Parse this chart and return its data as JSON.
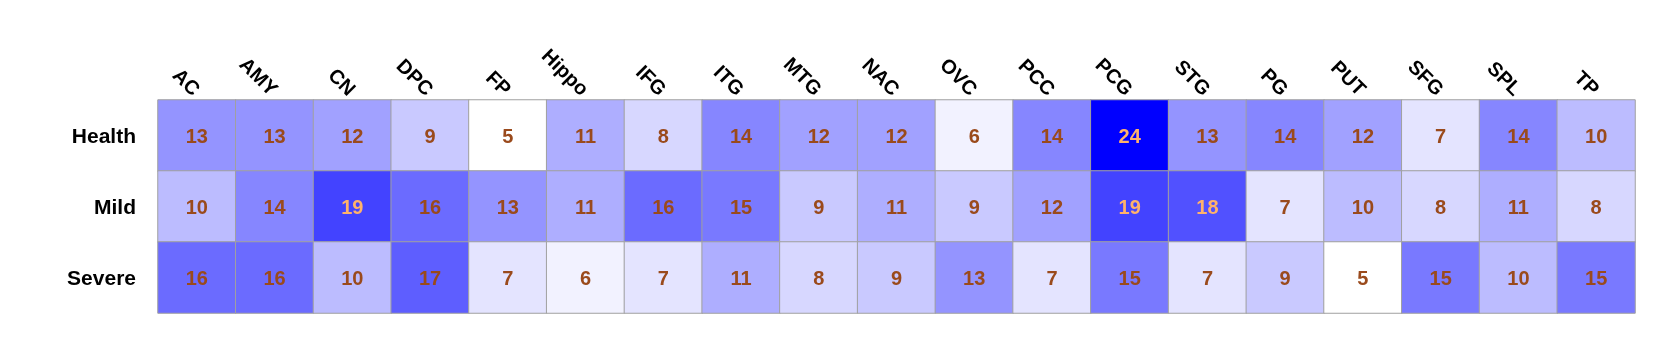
{
  "chart_data": {
    "type": "heatmap",
    "categories": [
      "AC",
      "AMY",
      "CN",
      "DPC",
      "FP",
      "Hippo",
      "IFG",
      "ITG",
      "MTG",
      "NAC",
      "OVC",
      "PCC",
      "PCG",
      "STG",
      "PG",
      "PUT",
      "SFG",
      "SPL",
      "TP"
    ],
    "y_categories": [
      "Health",
      "Mild",
      "Severe"
    ],
    "cells": [
      [
        13,
        13,
        12,
        9,
        5,
        11,
        8,
        14,
        12,
        12,
        6,
        14,
        24,
        13,
        14,
        12,
        7,
        14,
        10
      ],
      [
        10,
        14,
        19,
        16,
        13,
        11,
        16,
        15,
        9,
        11,
        9,
        12,
        19,
        18,
        7,
        10,
        8,
        11,
        8
      ],
      [
        16,
        16,
        10,
        17,
        7,
        6,
        7,
        11,
        8,
        9,
        13,
        7,
        15,
        7,
        9,
        5,
        15,
        10,
        15
      ]
    ],
    "data_labels": true
  }
}
